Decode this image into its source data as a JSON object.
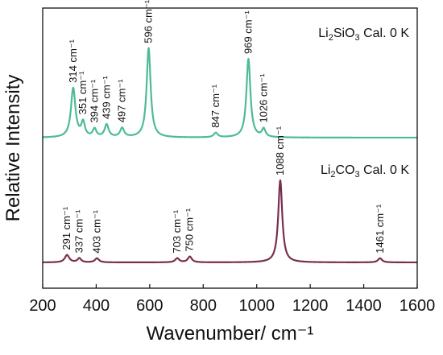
{
  "chart_data": {
    "type": "line",
    "xlabel": "Wavenumber/ cm⁻¹",
    "ylabel": "Relative Intensity",
    "xlim": [
      200,
      1600
    ],
    "xticks": [
      200,
      400,
      600,
      800,
      1000,
      1200,
      1400,
      1600
    ],
    "y_ticks_shown": false,
    "grid": false,
    "legend": "none",
    "series": [
      {
        "name": "Li₂SiO₃ Cal. 0 K",
        "name_parts": {
          "base1": "Li",
          "sub1": "2",
          "base2": "SiO",
          "sub2": "3",
          "rest": " Cal. 0 K"
        },
        "color": "#4dbb95",
        "baseline": 0,
        "peaks": [
          {
            "x": 314,
            "height": 0.55,
            "width": 10,
            "label": "314 cm⁻¹"
          },
          {
            "x": 351,
            "height": 0.16,
            "width": 8,
            "label": "351 cm⁻¹"
          },
          {
            "x": 394,
            "height": 0.09,
            "width": 8,
            "label": "394 cm⁻¹"
          },
          {
            "x": 439,
            "height": 0.14,
            "width": 9,
            "label": "439 cm⁻¹"
          },
          {
            "x": 497,
            "height": 0.1,
            "width": 9,
            "label": "497 cm⁻¹"
          },
          {
            "x": 596,
            "height": 1.0,
            "width": 9,
            "label": "596 cm⁻¹"
          },
          {
            "x": 847,
            "height": 0.05,
            "width": 9,
            "label": "847 cm⁻¹"
          },
          {
            "x": 969,
            "height": 0.88,
            "width": 9,
            "label": "969 cm⁻¹"
          },
          {
            "x": 1026,
            "height": 0.09,
            "width": 8,
            "label": "1026 cm⁻¹"
          }
        ]
      },
      {
        "name": "Li₂CO₃ Cal. 0 K",
        "name_parts": {
          "base1": "Li",
          "sub1": "2",
          "base2": "CO",
          "sub2": "3",
          "rest": " Cal. 0 K"
        },
        "color": "#7a2e4e",
        "baseline": 0,
        "peaks": [
          {
            "x": 291,
            "height": 0.09,
            "width": 10,
            "label": "291 cm⁻¹"
          },
          {
            "x": 337,
            "height": 0.05,
            "width": 8,
            "label": "337 cm⁻¹"
          },
          {
            "x": 403,
            "height": 0.05,
            "width": 9,
            "label": "403 cm⁻¹"
          },
          {
            "x": 703,
            "height": 0.05,
            "width": 9,
            "label": "703 cm⁻¹"
          },
          {
            "x": 750,
            "height": 0.07,
            "width": 9,
            "label": "750 cm⁻¹"
          },
          {
            "x": 1088,
            "height": 1.0,
            "width": 9,
            "label": "1088 cm⁻¹"
          },
          {
            "x": 1461,
            "height": 0.05,
            "width": 9,
            "label": "1461 cm⁻¹"
          }
        ]
      }
    ]
  }
}
